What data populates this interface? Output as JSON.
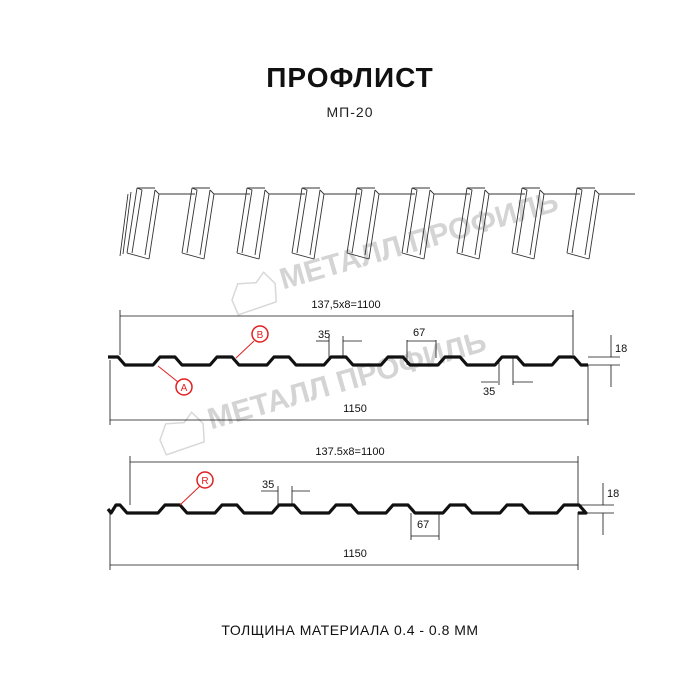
{
  "header": {
    "title": "ПРОФЛИСТ",
    "subtitle": "МП-20"
  },
  "watermark": "МЕТАЛЛ ПРОФИЛЬ",
  "profile_1": {
    "pitch_dim": "137,5x8=1100",
    "width_dim": "1150",
    "top_width_dim": "35",
    "bottom_width_dim": "35",
    "rib_dim": "67",
    "height_dim": "18",
    "marker_a": "A",
    "marker_b": "B"
  },
  "profile_2": {
    "pitch_dim": "137.5x8=1100",
    "width_dim": "1150",
    "top_width_dim": "35",
    "rib_dim": "67",
    "height_dim": "18",
    "marker_r": "R"
  },
  "footer": {
    "thickness": "ТОЛЩИНА МАТЕРИАЛА 0.4 - 0.8 ММ"
  },
  "colors": {
    "line": "#111111",
    "marker": "#e02020",
    "watermark": "#d0d0d0"
  }
}
